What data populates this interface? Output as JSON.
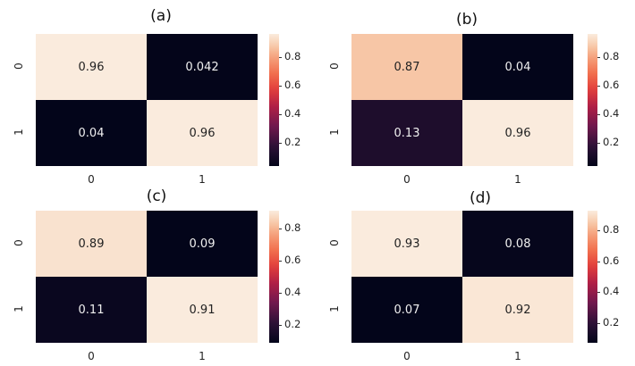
{
  "chart_data": [
    {
      "type": "heatmap",
      "title": "(a)",
      "rows": [
        "0",
        "1"
      ],
      "cols": [
        "0",
        "1"
      ],
      "values": [
        [
          0.96,
          0.042
        ],
        [
          0.04,
          0.96
        ]
      ],
      "labels": [
        [
          "0.96",
          "0.042"
        ],
        [
          "0.04",
          "0.96"
        ]
      ],
      "colorbar": {
        "ticks": [
          "0.8",
          "0.6",
          "0.4",
          "0.2"
        ],
        "tick_values": [
          0.8,
          0.6,
          0.4,
          0.2
        ],
        "range": [
          0.04,
          0.96
        ]
      }
    },
    {
      "type": "heatmap",
      "title": "(b)",
      "rows": [
        "0",
        "1"
      ],
      "cols": [
        "0",
        "1"
      ],
      "values": [
        [
          0.87,
          0.04
        ],
        [
          0.13,
          0.96
        ]
      ],
      "labels": [
        [
          "0.87",
          "0.04"
        ],
        [
          "0.13",
          "0.96"
        ]
      ],
      "colorbar": {
        "ticks": [
          "0.8",
          "0.6",
          "0.4",
          "0.2"
        ],
        "tick_values": [
          0.8,
          0.6,
          0.4,
          0.2
        ],
        "range": [
          0.04,
          0.96
        ]
      }
    },
    {
      "type": "heatmap",
      "title": "(c)",
      "rows": [
        "0",
        "1"
      ],
      "cols": [
        "0",
        "1"
      ],
      "values": [
        [
          0.89,
          0.09
        ],
        [
          0.11,
          0.91
        ]
      ],
      "labels": [
        [
          "0.89",
          "0.09"
        ],
        [
          "0.11",
          "0.91"
        ]
      ],
      "colorbar": {
        "ticks": [
          "0.8",
          "0.6",
          "0.4",
          "0.2"
        ],
        "tick_values": [
          0.8,
          0.6,
          0.4,
          0.2
        ],
        "range": [
          0.09,
          0.91
        ]
      }
    },
    {
      "type": "heatmap",
      "title": "(d)",
      "rows": [
        "0",
        "1"
      ],
      "cols": [
        "0",
        "1"
      ],
      "values": [
        [
          0.93,
          0.08
        ],
        [
          0.07,
          0.92
        ]
      ],
      "labels": [
        [
          "0.93",
          "0.08"
        ],
        [
          "0.07",
          "0.92"
        ]
      ],
      "colorbar": {
        "ticks": [
          "0.8",
          "0.6",
          "0.4",
          "0.2"
        ],
        "tick_values": [
          0.8,
          0.6,
          0.4,
          0.2
        ],
        "range": [
          0.07,
          0.93
        ]
      }
    }
  ],
  "colormap": "rocket"
}
